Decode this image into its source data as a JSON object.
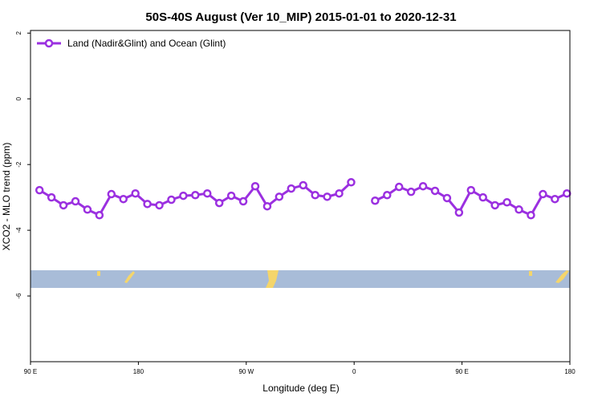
{
  "chart_data": {
    "type": "line",
    "title": "50S-40S August (Ver 10_MIP)   2015-01-01 to 2020-12-31",
    "x_label": "Longitude (deg E)",
    "y_label": "XCO2 - MLO trend (ppm)",
    "x": [
      97.5,
      107.5,
      117.5,
      127.5,
      137.5,
      147.5,
      157.5,
      167.5,
      177.5,
      187.5,
      197.5,
      207.5,
      217.5,
      227.5,
      237.5,
      247.5,
      257.5,
      267.5,
      277.5,
      287.5,
      297.5,
      307.5,
      317.5,
      327.5,
      337.5,
      347.5,
      357.5,
      367.5,
      377.5,
      387.5,
      397.5,
      407.5,
      417.5,
      427.5,
      437.5,
      447.5,
      457.5,
      467.5,
      477.5,
      487.5,
      497.5,
      507.5,
      517.5,
      527.5,
      537.5
    ],
    "series": [
      {
        "name": "Land (Nadir&Glint) and Ocean (Glint)",
        "color": "#9b30e0",
        "values": [
          -2.78,
          -3.0,
          -3.24,
          -3.12,
          -3.37,
          -3.54,
          -2.9,
          -3.05,
          -2.88,
          -3.2,
          -3.24,
          -3.07,
          -2.95,
          -2.93,
          -2.88,
          -3.17,
          -2.95,
          -3.12,
          -2.66,
          -3.27,
          -2.98,
          -2.73,
          -2.63,
          -2.93,
          -2.98,
          -2.88,
          -2.54,
          null,
          -3.1,
          -2.93,
          -2.68,
          -2.83,
          -2.66,
          -2.8,
          -3.02,
          -3.46,
          -2.78,
          -3.0,
          -3.24,
          -3.15,
          -3.37,
          -3.54,
          -2.9,
          -3.05,
          -2.88
        ]
      }
    ],
    "xlim": [
      90,
      540
    ],
    "xticks": [
      {
        "value": 90,
        "label": "90 E"
      },
      180,
      {
        "value": 270,
        "label": "90 W"
      },
      {
        "value": 360,
        "label": "0"
      },
      {
        "value": 450,
        "label": "90 E"
      },
      {
        "value": 540,
        "label": "180"
      }
    ],
    "ylim": [
      -8,
      2.08
    ],
    "yticks": [
      -6,
      -4,
      -2,
      0,
      2
    ],
    "legend": "top-left"
  }
}
